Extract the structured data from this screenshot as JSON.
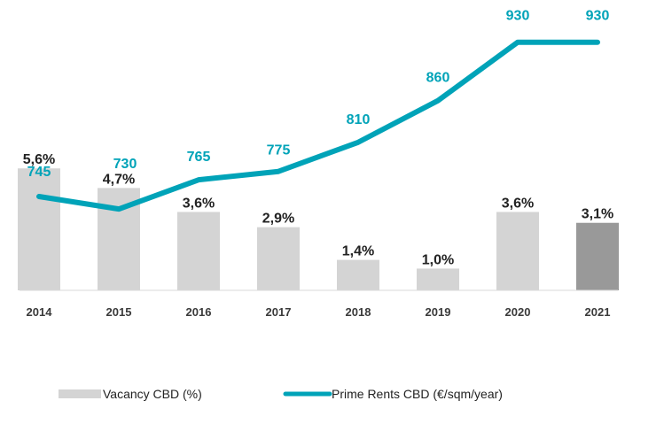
{
  "chart_data": {
    "type": "bar",
    "categories": [
      "2014",
      "2015",
      "2016",
      "2017",
      "2018",
      "2019",
      "2020",
      "2021"
    ],
    "series": [
      {
        "name": "Vacancy CBD (%)",
        "type": "bar",
        "values": [
          5.6,
          4.7,
          3.6,
          2.9,
          1.4,
          1.0,
          3.6,
          3.1
        ],
        "labels": [
          "5,6%",
          "4,7%",
          "3,6%",
          "2,9%",
          "1,4%",
          "1,0%",
          "3,6%",
          "3,1%"
        ],
        "color": "#d4d4d4",
        "highlight_color": "#999999",
        "highlight_index": 7
      },
      {
        "name": "Prime Rents CBD (€/sqm/year)",
        "type": "line",
        "values": [
          745,
          730,
          765,
          775,
          810,
          860,
          930,
          930
        ],
        "labels": [
          "745",
          "730",
          "765",
          "775",
          "810",
          "860",
          "930",
          "930"
        ],
        "color": "#00a3b8"
      }
    ],
    "legend_position": "bottom",
    "grid": false
  }
}
